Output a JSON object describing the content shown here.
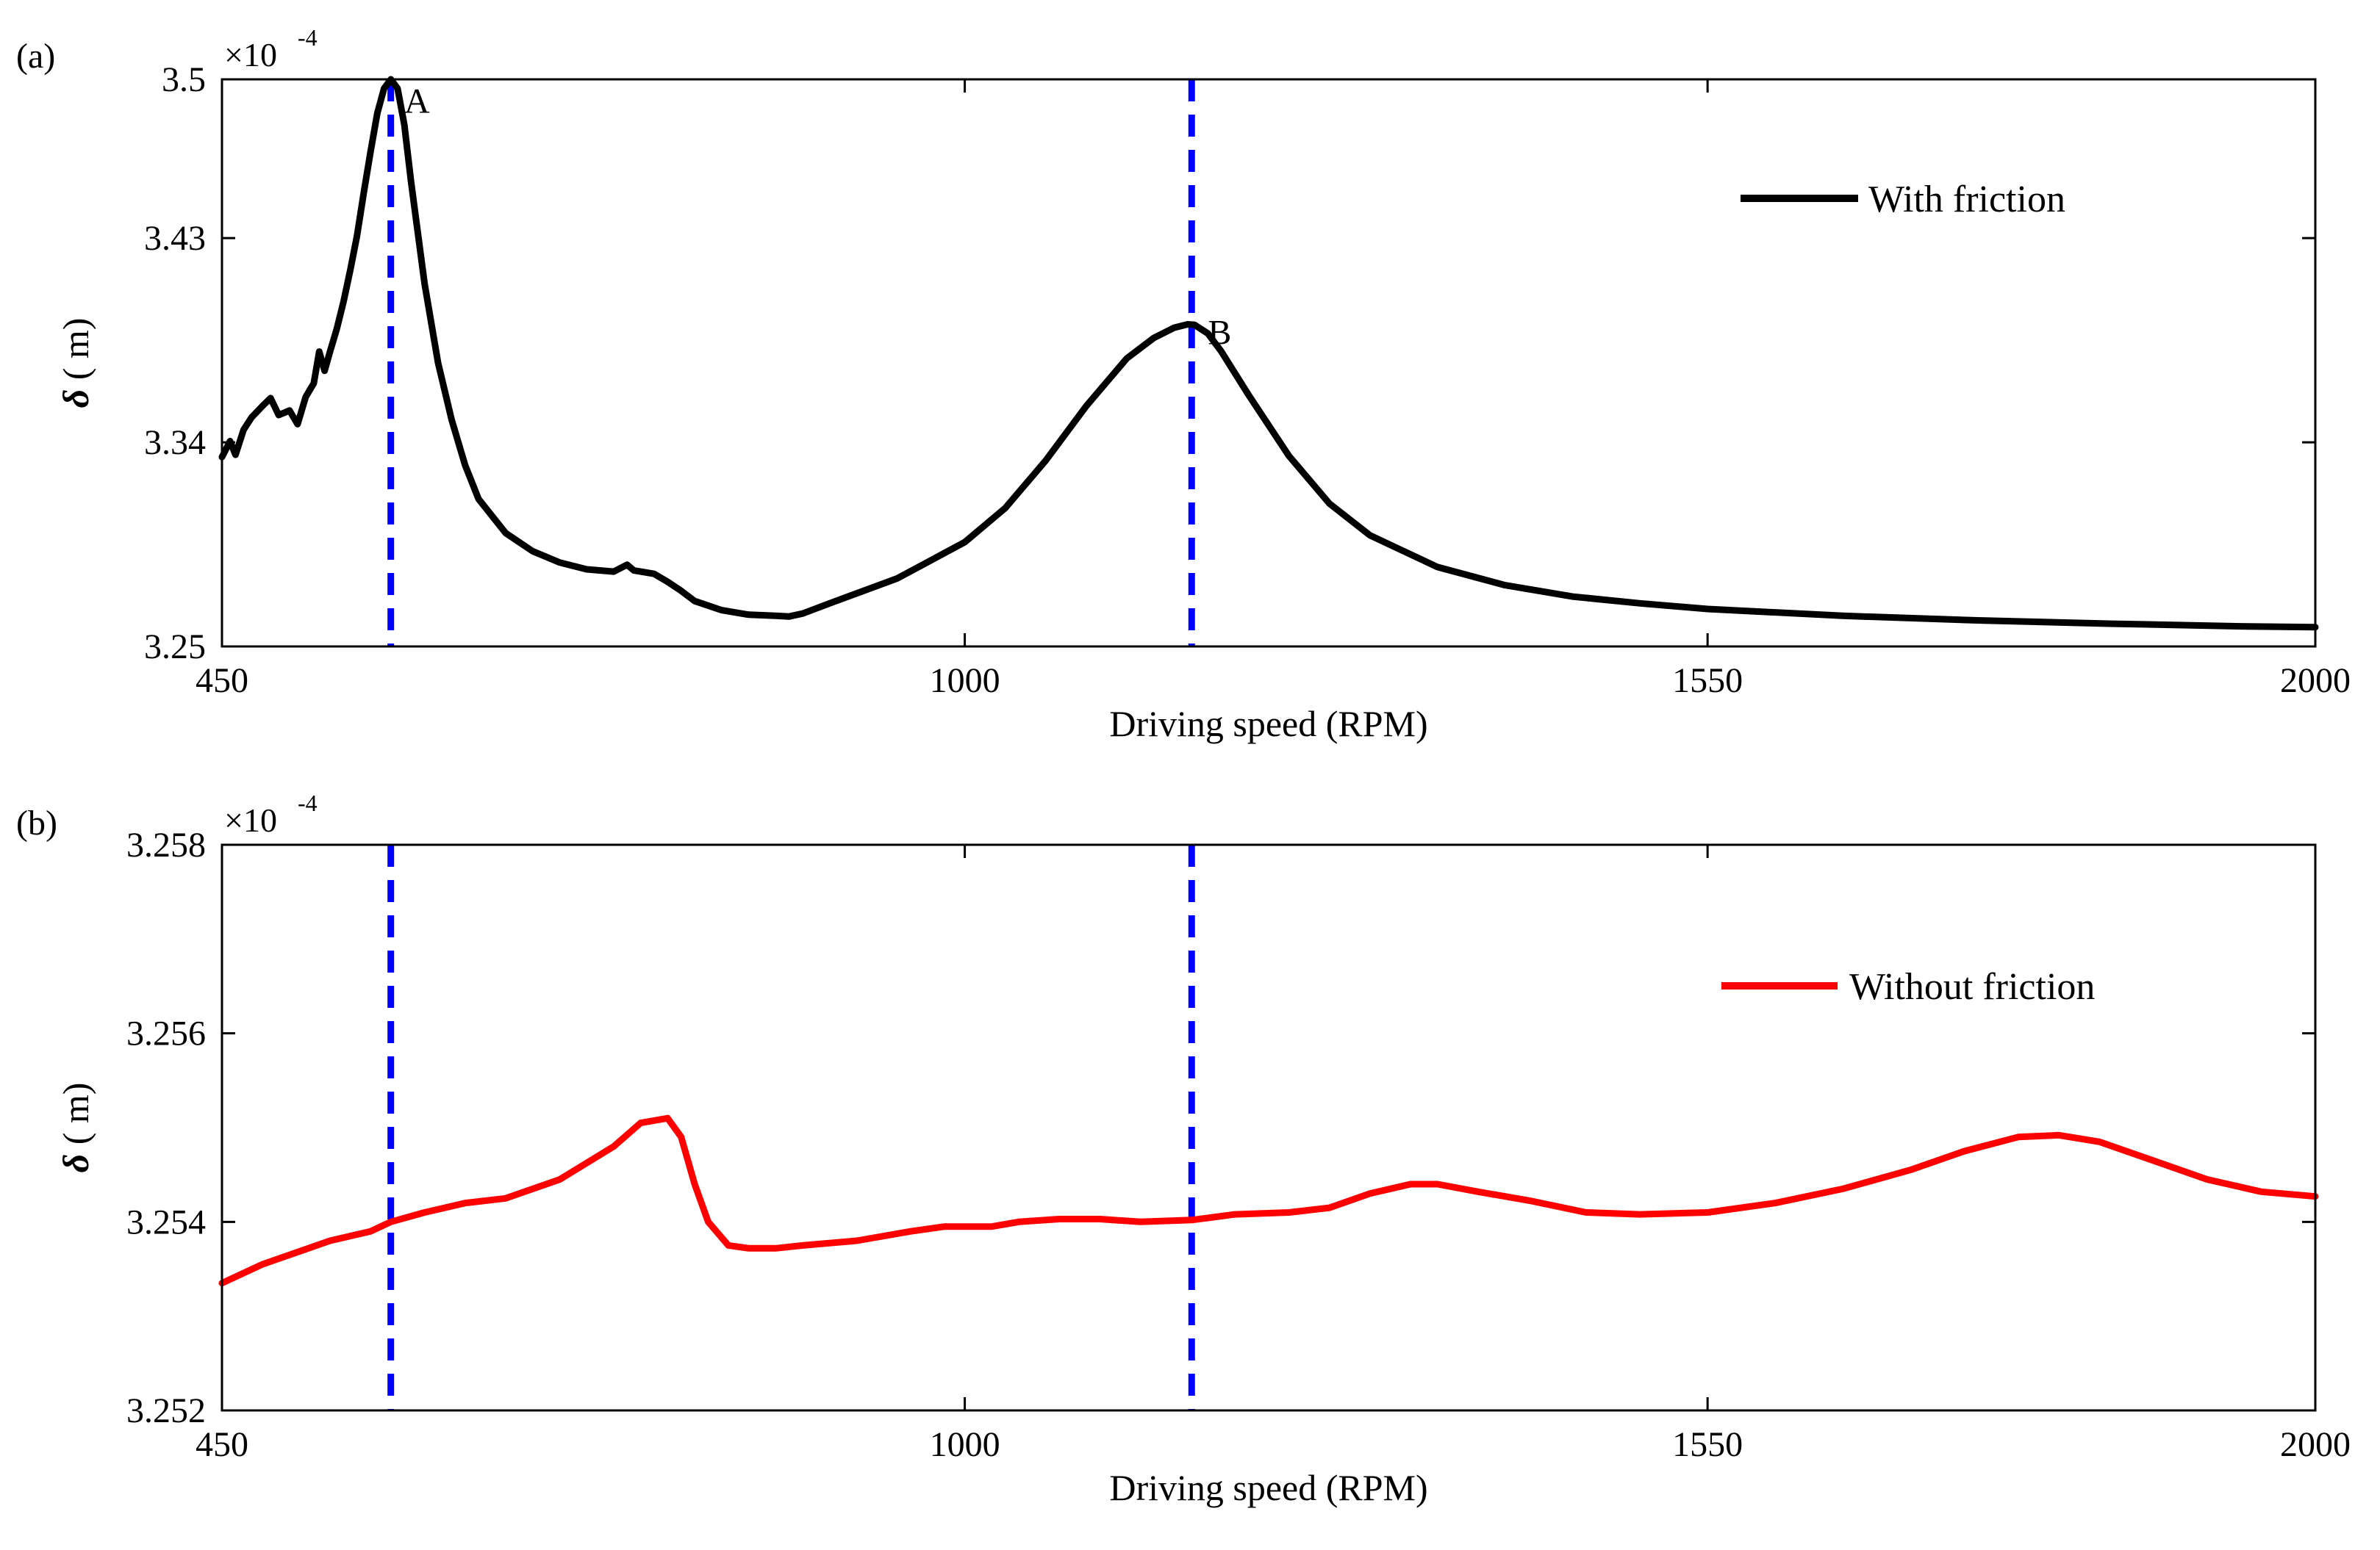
{
  "chart_data": [
    {
      "type": "line",
      "panel_label": "(a)",
      "exponent": {
        "prefix": "×10",
        "power": "-4"
      },
      "xlabel": "Driving speed (RPM)",
      "ylabel": {
        "symbol": "δ",
        "unit": " ( m)"
      },
      "xlim": [
        450,
        2000
      ],
      "ylim": [
        3.25,
        3.5
      ],
      "xticks": [
        450,
        1000,
        1550,
        2000
      ],
      "yticks": [
        3.25,
        3.34,
        3.43,
        3.5
      ],
      "ytick_labels": [
        "3.25",
        "3.34",
        "3.43",
        "3.5"
      ],
      "vlines": [
        575,
        1168
      ],
      "vline_color": "#0000ff",
      "annotations": [
        {
          "text": "A",
          "x": 585,
          "y": 3.4905
        },
        {
          "text": "B",
          "x": 1180,
          "y": 3.3885
        }
      ],
      "legend": {
        "position": "top-right"
      },
      "series": [
        {
          "name": "With friction",
          "color": "#000000",
          "x": [
            450,
            456,
            460,
            466,
            472,
            480,
            486,
            492,
            500,
            506,
            512,
            518,
            522,
            526,
            530,
            535,
            540,
            545,
            550,
            555,
            560,
            565,
            570,
            575,
            580,
            585,
            590,
            600,
            610,
            620,
            630,
            640,
            660,
            680,
            700,
            720,
            740,
            750,
            755,
            760,
            770,
            780,
            790,
            800,
            820,
            840,
            860,
            870,
            880,
            900,
            950,
            1000,
            1030,
            1060,
            1090,
            1120,
            1140,
            1155,
            1165,
            1170,
            1180,
            1190,
            1210,
            1240,
            1270,
            1300,
            1350,
            1400,
            1450,
            1500,
            1550,
            1650,
            1750,
            1850,
            1950,
            2000
          ],
          "y": [
            3.3335,
            3.3405,
            3.3345,
            3.3455,
            3.351,
            3.356,
            3.3595,
            3.352,
            3.354,
            3.348,
            3.36,
            3.366,
            3.38,
            3.3715,
            3.38,
            3.39,
            3.402,
            3.416,
            3.431,
            3.45,
            3.468,
            3.485,
            3.496,
            3.5,
            3.496,
            3.48,
            3.455,
            3.41,
            3.375,
            3.35,
            3.33,
            3.315,
            3.3,
            3.292,
            3.287,
            3.284,
            3.283,
            3.286,
            3.2835,
            3.283,
            3.282,
            3.2785,
            3.2745,
            3.27,
            3.266,
            3.264,
            3.2635,
            3.2632,
            3.2645,
            3.269,
            3.28,
            3.296,
            3.311,
            3.332,
            3.356,
            3.377,
            3.386,
            3.3905,
            3.392,
            3.3918,
            3.388,
            3.38,
            3.361,
            3.334,
            3.313,
            3.299,
            3.285,
            3.277,
            3.272,
            3.269,
            3.2665,
            3.2635,
            3.2615,
            3.26,
            3.2588,
            3.2585
          ]
        }
      ]
    },
    {
      "type": "line",
      "panel_label": "(b)",
      "exponent": {
        "prefix": "×10",
        "power": "-4"
      },
      "xlabel": "Driving speed (RPM)",
      "ylabel": {
        "symbol": "δ",
        "unit": " ( m)"
      },
      "xlim": [
        450,
        2000
      ],
      "ylim": [
        3.252,
        3.258
      ],
      "xticks": [
        450,
        1000,
        1550,
        2000
      ],
      "yticks": [
        3.252,
        3.254,
        3.256,
        3.258
      ],
      "ytick_labels": [
        "3.252",
        "3.254",
        "3.256",
        "3.258"
      ],
      "vlines": [
        575,
        1168
      ],
      "vline_color": "#0000ff",
      "annotations": [],
      "legend": {
        "position": "right"
      },
      "series": [
        {
          "name": "Without friction",
          "color": "#ff0000",
          "x": [
            450,
            480,
            500,
            530,
            560,
            575,
            600,
            630,
            660,
            700,
            740,
            760,
            780,
            790,
            800,
            810,
            825,
            840,
            860,
            880,
            920,
            960,
            985,
            1000,
            1020,
            1040,
            1070,
            1100,
            1130,
            1168,
            1200,
            1240,
            1270,
            1300,
            1330,
            1350,
            1380,
            1420,
            1460,
            1500,
            1550,
            1600,
            1650,
            1700,
            1740,
            1780,
            1810,
            1840,
            1880,
            1920,
            1960,
            2000
          ],
          "y": [
            3.25335,
            3.25355,
            3.25365,
            3.2538,
            3.2539,
            3.254,
            3.2541,
            3.2542,
            3.25425,
            3.25445,
            3.2548,
            3.25505,
            3.2551,
            3.2549,
            3.2544,
            3.254,
            3.25375,
            3.25372,
            3.25372,
            3.25375,
            3.2538,
            3.2539,
            3.25395,
            3.25395,
            3.25395,
            3.254,
            3.25403,
            3.25403,
            3.254,
            3.25402,
            3.25408,
            3.2541,
            3.25415,
            3.2543,
            3.2544,
            3.2544,
            3.25432,
            3.25422,
            3.2541,
            3.25408,
            3.2541,
            3.2542,
            3.25435,
            3.25455,
            3.25475,
            3.2549,
            3.25492,
            3.25485,
            3.25465,
            3.25445,
            3.25432,
            3.25427
          ]
        }
      ]
    }
  ]
}
